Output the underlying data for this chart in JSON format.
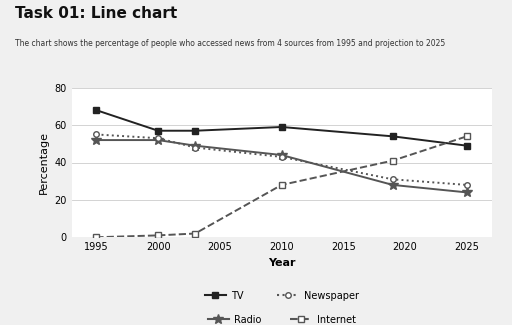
{
  "title": "Task 01: Line chart",
  "subtitle": "The chart shows the percentage of people who accessed news from 4 sources from 1995 and projection to 2025",
  "xlabel": "Year",
  "ylabel": "Percentage",
  "years": [
    1995,
    2000,
    2003,
    2010,
    2019,
    2025
  ],
  "TV": [
    68,
    57,
    57,
    59,
    54,
    49
  ],
  "Radio": [
    52,
    52,
    49,
    44,
    28,
    24
  ],
  "Newspaper": [
    55,
    53,
    48,
    43,
    31,
    28
  ],
  "Internet": [
    0,
    1,
    2,
    28,
    41,
    54
  ],
  "ylim": [
    0,
    80
  ],
  "yticks": [
    0,
    20,
    40,
    60,
    80
  ],
  "xticks": [
    1995,
    2000,
    2005,
    2010,
    2015,
    2020,
    2025
  ],
  "background_color": "#f0f0f0",
  "plot_background": "#ffffff"
}
